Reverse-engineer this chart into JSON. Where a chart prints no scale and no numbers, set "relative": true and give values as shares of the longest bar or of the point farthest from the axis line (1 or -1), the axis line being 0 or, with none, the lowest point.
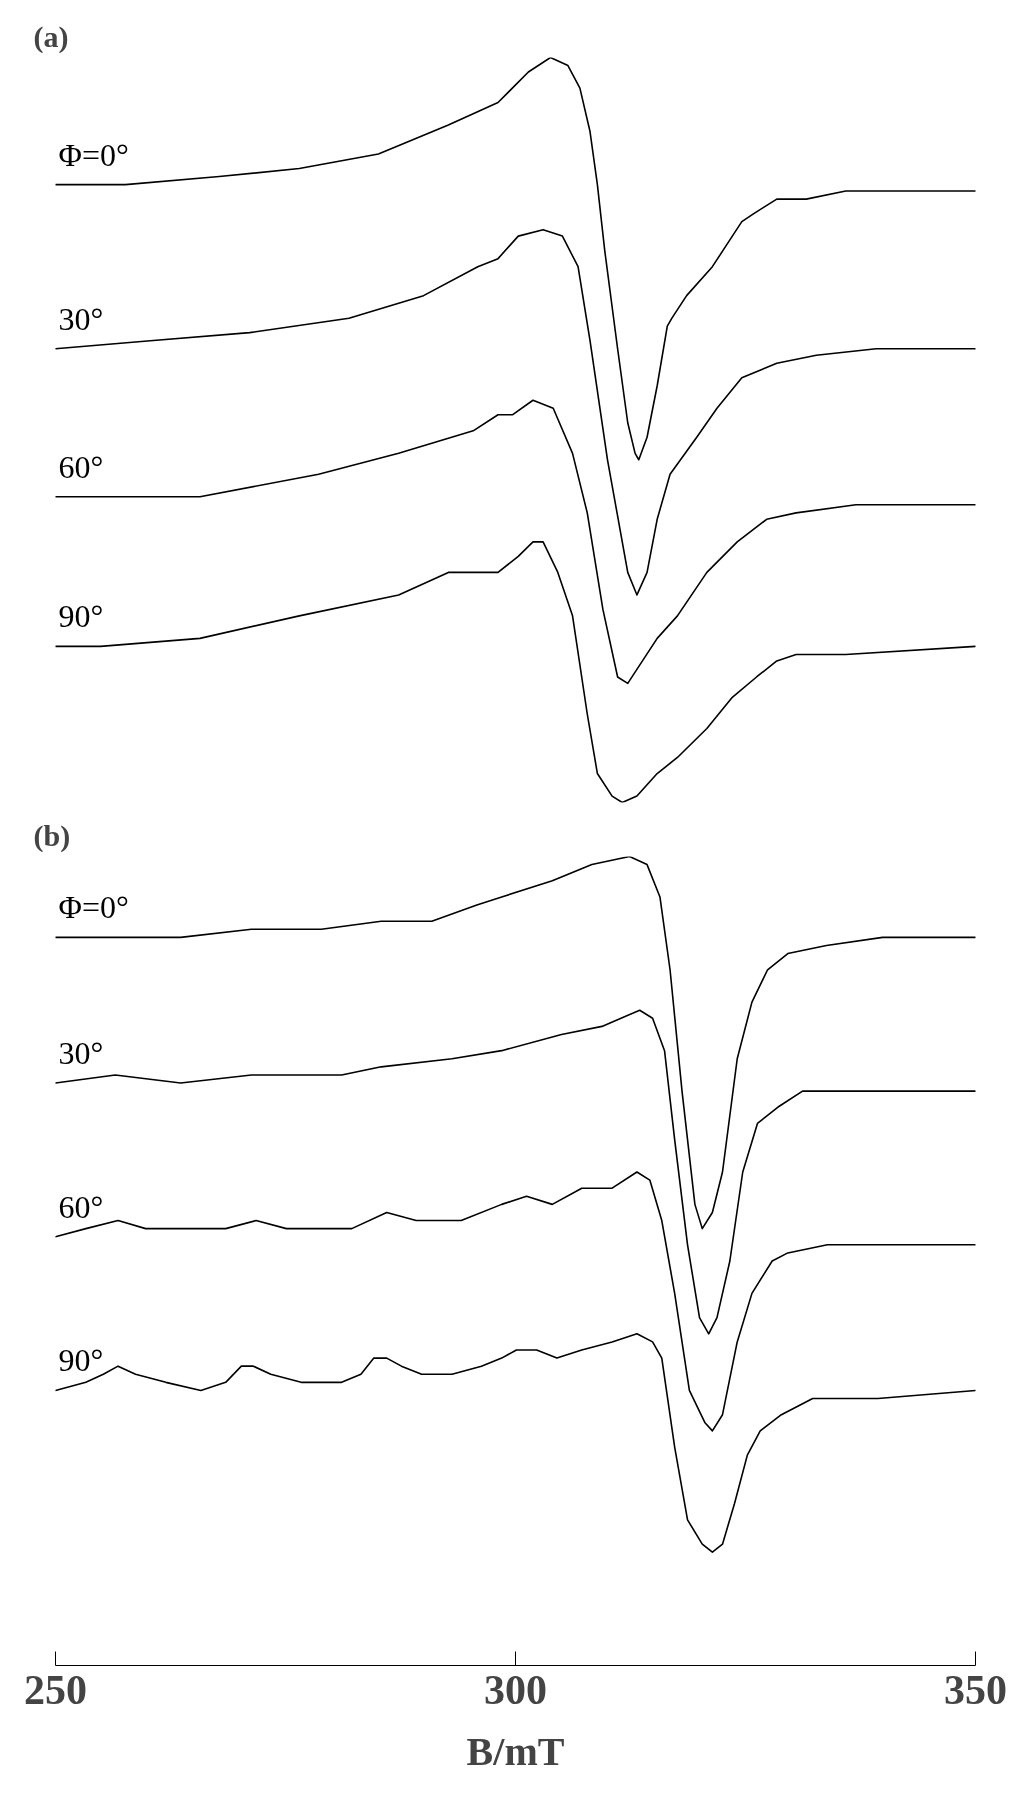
{
  "chart_data": [
    {
      "type": "line",
      "title": "(a)",
      "relative": true,
      "xlim": [
        250,
        350
      ],
      "tick_labels": false,
      "series": [
        {
          "name": "Φ=0°",
          "color": "#000000",
          "x": [
            250,
            257.6,
            267.8,
            276.5,
            285.1,
            292.7,
            298.1,
            301.4,
            303.8,
            305.7,
            307.0,
            308.1,
            308.9,
            309.7,
            311.1,
            312.2,
            313.0,
            313.4,
            314.3,
            315.4,
            316.5,
            317.0,
            318.6,
            321.4,
            323.0,
            324.6,
            325.9,
            328.4,
            331.6,
            335.9,
            341.4,
            350
          ],
          "values": [
            0.921,
            0.921,
            0.926,
            0.931,
            0.94,
            0.958,
            0.972,
            0.991,
            1.0,
            0.995,
            0.981,
            0.954,
            0.921,
            0.88,
            0.819,
            0.773,
            0.754,
            0.75,
            0.764,
            0.796,
            0.833,
            0.838,
            0.852,
            0.87,
            0.884,
            0.898,
            0.903,
            0.912,
            0.912,
            0.917,
            0.917,
            0.917
          ]
        },
        {
          "name": "30°",
          "color": "#000000",
          "x": [
            250,
            260.3,
            271.1,
            281.9,
            290.0,
            295.9,
            298.1,
            300.3,
            303.0,
            305.1,
            306.8,
            308.1,
            310.0,
            312.2,
            313.2,
            314.3,
            315.4,
            316.8,
            319.7,
            321.9,
            324.6,
            328.4,
            332.7,
            339.2,
            350
          ],
          "values": [
            0.819,
            0.824,
            0.829,
            0.838,
            0.852,
            0.87,
            0.875,
            0.889,
            0.893,
            0.889,
            0.87,
            0.824,
            0.75,
            0.68,
            0.666,
            0.68,
            0.713,
            0.741,
            0.764,
            0.782,
            0.801,
            0.81,
            0.815,
            0.819,
            0.819
          ]
        },
        {
          "name": "60°",
          "color": "#000000",
          "x": [
            250,
            265.7,
            278.6,
            287.3,
            295.4,
            298.1,
            299.7,
            301.9,
            304.1,
            306.2,
            307.8,
            309.5,
            311.1,
            312.2,
            313.8,
            315.4,
            317.6,
            320.8,
            324.1,
            327.3,
            330.5,
            337.0,
            350
          ],
          "values": [
            0.727,
            0.727,
            0.741,
            0.754,
            0.768,
            0.778,
            0.778,
            0.787,
            0.782,
            0.754,
            0.717,
            0.657,
            0.615,
            0.611,
            0.625,
            0.639,
            0.653,
            0.68,
            0.699,
            0.713,
            0.717,
            0.722,
            0.722
          ]
        },
        {
          "name": "90°",
          "color": "#000000",
          "x": [
            250,
            254.9,
            265.7,
            276.5,
            287.3,
            292.7,
            295.4,
            298.1,
            300.3,
            301.9,
            303.0,
            304.6,
            306.2,
            307.8,
            308.9,
            310.5,
            311.6,
            313.2,
            315.4,
            317.6,
            320.8,
            323.5,
            326.2,
            328.4,
            330.5,
            335.9,
            350
          ],
          "values": [
            0.634,
            0.634,
            0.639,
            0.653,
            0.666,
            0.68,
            0.68,
            0.68,
            0.69,
            0.699,
            0.699,
            0.68,
            0.653,
            0.592,
            0.555,
            0.541,
            0.537,
            0.541,
            0.555,
            0.565,
            0.583,
            0.602,
            0.615,
            0.625,
            0.629,
            0.629,
            0.634
          ]
        }
      ]
    },
    {
      "type": "line",
      "title": "(b)",
      "xlabel": "B/mT",
      "relative": true,
      "xlim": [
        250,
        350
      ],
      "xticks": [
        250,
        300,
        350
      ],
      "tick_labels": "x",
      "series": [
        {
          "name": "Φ=0°",
          "color": "#000000",
          "x": [
            250,
            254.9,
            263.6,
            271.3,
            278.9,
            285.4,
            290.9,
            295.8,
            298.5,
            304.0,
            308.3,
            312.4,
            314.3,
            315.7,
            316.8,
            318.1,
            319.5,
            320.3,
            321.4,
            322.5,
            324.1,
            325.7,
            327.4,
            329.6,
            333.8,
            339.9,
            350
          ],
          "values": [
            0.9,
            0.9,
            0.9,
            0.91,
            0.91,
            0.92,
            0.92,
            0.94,
            0.95,
            0.97,
            0.99,
            1.0,
            0.99,
            0.95,
            0.86,
            0.71,
            0.57,
            0.54,
            0.56,
            0.61,
            0.75,
            0.82,
            0.86,
            0.88,
            0.89,
            0.9,
            0.9
          ]
        },
        {
          "name": "30°",
          "color": "#000000",
          "x": [
            250,
            256.5,
            263.6,
            271.3,
            281.1,
            285.4,
            293.1,
            298.5,
            305.0,
            309.4,
            313.5,
            314.9,
            316.2,
            317.3,
            318.7,
            320.0,
            321.0,
            321.9,
            323.3,
            324.7,
            326.3,
            328.5,
            331.2,
            336.6,
            350
          ],
          "values": [
            0.72,
            0.73,
            0.72,
            0.73,
            0.73,
            0.74,
            0.75,
            0.76,
            0.78,
            0.79,
            0.81,
            0.8,
            0.76,
            0.65,
            0.52,
            0.43,
            0.41,
            0.43,
            0.5,
            0.61,
            0.67,
            0.69,
            0.71,
            0.71,
            0.71
          ]
        },
        {
          "name": "60°",
          "color": "#000000",
          "x": [
            250,
            253.3,
            256.8,
            259.8,
            264.7,
            268.5,
            271.8,
            275.1,
            282.2,
            286.0,
            289.2,
            294.1,
            298.5,
            301.2,
            304.0,
            307.2,
            310.5,
            313.2,
            314.6,
            315.9,
            317.3,
            318.9,
            320.6,
            321.4,
            322.5,
            324.1,
            325.7,
            327.9,
            329.6,
            333.9,
            342.1,
            350
          ],
          "values": [
            0.53,
            0.54,
            0.55,
            0.54,
            0.54,
            0.54,
            0.55,
            0.54,
            0.54,
            0.56,
            0.55,
            0.55,
            0.57,
            0.58,
            0.57,
            0.59,
            0.59,
            0.61,
            0.6,
            0.55,
            0.46,
            0.34,
            0.3,
            0.29,
            0.31,
            0.4,
            0.46,
            0.5,
            0.51,
            0.52,
            0.52,
            0.52
          ]
        },
        {
          "name": "90°",
          "color": "#000000",
          "x": [
            250,
            253.3,
            255.2,
            256.8,
            258.7,
            262.0,
            265.8,
            268.5,
            270.2,
            271.5,
            273.4,
            276.7,
            281.1,
            283.2,
            284.6,
            286.0,
            287.6,
            289.8,
            293.1,
            296.3,
            298.5,
            300.1,
            302.3,
            304.5,
            307.2,
            310.5,
            313.2,
            314.9,
            315.9,
            317.3,
            318.7,
            320.3,
            321.4,
            322.5,
            323.8,
            325.2,
            326.6,
            328.9,
            332.3,
            339.4,
            350
          ],
          "values": [
            0.34,
            0.35,
            0.36,
            0.37,
            0.36,
            0.35,
            0.34,
            0.35,
            0.37,
            0.37,
            0.36,
            0.35,
            0.35,
            0.36,
            0.38,
            0.38,
            0.37,
            0.36,
            0.36,
            0.37,
            0.38,
            0.39,
            0.39,
            0.38,
            0.39,
            0.4,
            0.41,
            0.4,
            0.38,
            0.27,
            0.18,
            0.15,
            0.14,
            0.15,
            0.2,
            0.26,
            0.29,
            0.31,
            0.33,
            0.33,
            0.34
          ]
        }
      ]
    }
  ]
}
